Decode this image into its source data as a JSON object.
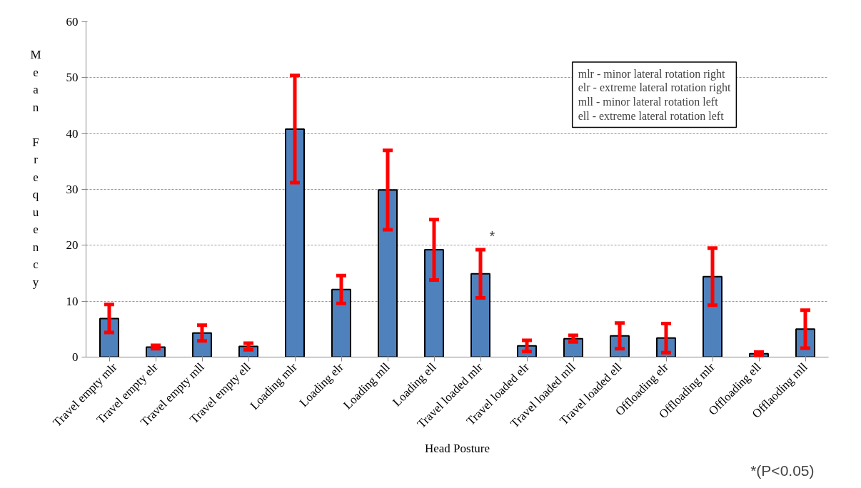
{
  "chart_data": {
    "type": "bar",
    "xlabel": "Head Posture",
    "ylabel": "Mean Frequency",
    "categories": [
      "Travel empty mlr",
      "Travel empty elr",
      "Travel empty mll",
      "Travel empty ell",
      "Loading mlr",
      "Loading elr",
      "Loading mll",
      "Loading ell",
      "Travel loaded mlr",
      "Travel loaded elr",
      "Travel loaded mll",
      "Travel loaded ell",
      "Offloading elr",
      "Offloading mlr",
      "Offloading ell",
      "Offlaoding mll"
    ],
    "values": [
      6.9,
      1.8,
      4.3,
      1.9,
      40.8,
      12.1,
      29.9,
      19.2,
      14.9,
      2.0,
      3.3,
      3.8,
      3.4,
      14.4,
      0.6,
      5.0
    ],
    "errors": [
      2.5,
      0.3,
      1.4,
      0.6,
      9.6,
      2.5,
      7.1,
      5.4,
      4.3,
      1.0,
      0.6,
      2.3,
      2.6,
      5.1,
      0.3,
      3.4
    ],
    "color": "#4f81bd",
    "ylim": [
      0,
      60
    ],
    "yticks": [
      0,
      10,
      20,
      30,
      40,
      50,
      60
    ],
    "grid": "y",
    "annotations": [
      "mlr - minor lateral rotation right\nelr - extreme lateral rotation right\nmll - minor lateral rotation left\nell - extreme lateral rotation left",
      "*",
      "*(P<0.05)"
    ]
  }
}
